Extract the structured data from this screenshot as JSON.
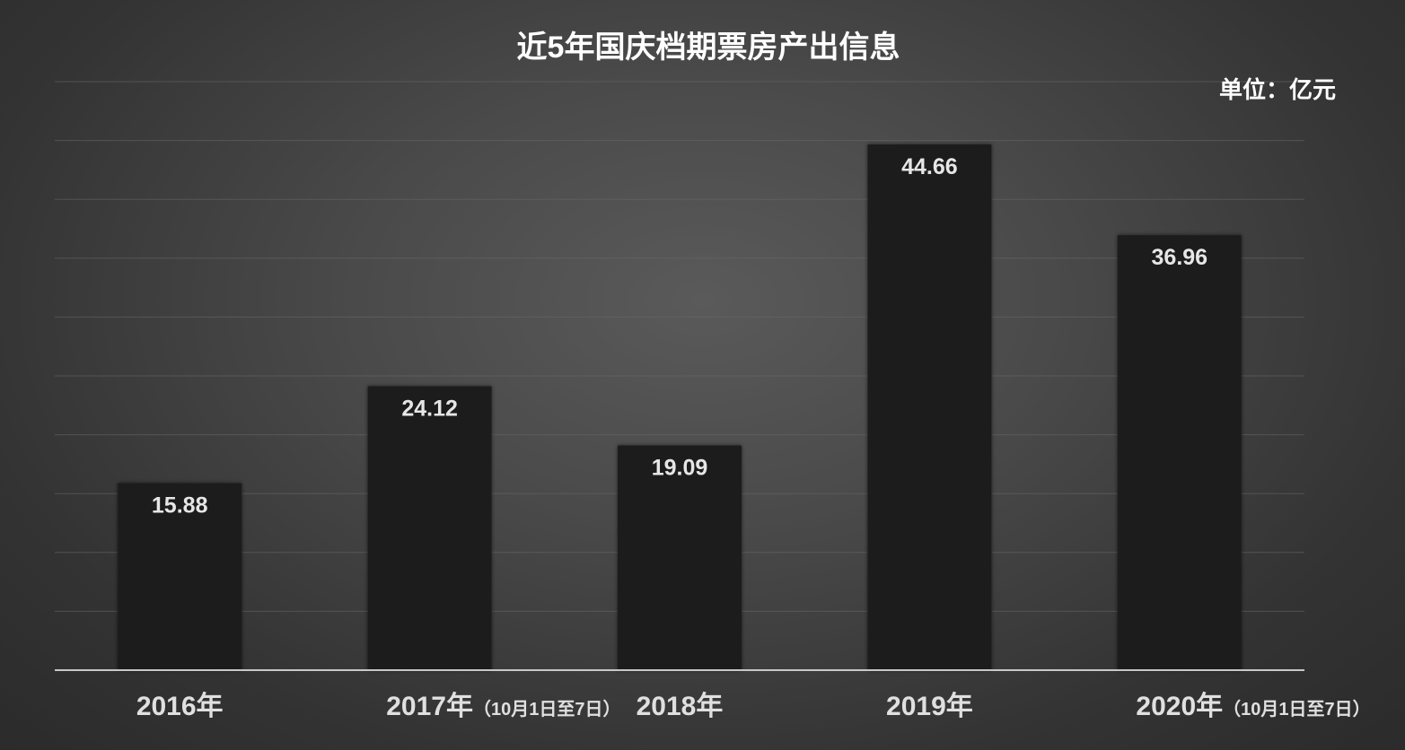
{
  "chart_data": {
    "type": "bar",
    "title": "近5年国庆档期票房产出信息",
    "unit": "单位：亿元",
    "categories": [
      "2016年",
      "2017年",
      "2018年",
      "2019年",
      "2020年"
    ],
    "category_notes": [
      "",
      "（10月1日至7日）",
      "",
      "",
      "（10月1日至7日）"
    ],
    "values": [
      15.88,
      24.12,
      19.09,
      44.66,
      36.96
    ],
    "value_labels": [
      "15.88",
      "24.12",
      "19.09",
      "44.66",
      "36.96"
    ],
    "ylim": [
      0,
      50
    ],
    "grid": true,
    "xlabel": "",
    "ylabel": ""
  },
  "colors": {
    "bar": "#1e1e1e",
    "text": "#e0e0e0",
    "background": "#444444"
  }
}
